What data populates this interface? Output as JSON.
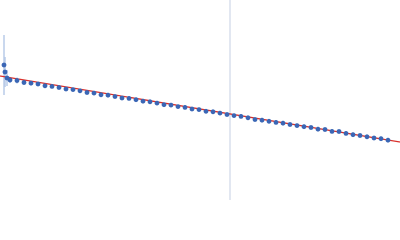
{
  "chart_data": {
    "type": "scatter",
    "xlim": [
      0,
      400
    ],
    "ylim": [
      0,
      200
    ],
    "vline": 230,
    "vline_color": "#c5cfe3",
    "series": [
      {
        "color": "#3a66b5",
        "error_color": "#b9cbe8",
        "x": [
          4,
          5,
          7,
          10,
          17,
          24,
          31,
          38,
          45,
          52,
          59,
          66,
          73,
          80,
          87,
          94,
          101,
          108,
          115,
          122,
          129,
          136,
          143,
          150,
          157,
          164,
          171,
          178,
          185,
          192,
          199,
          206,
          213,
          220,
          227,
          234,
          241,
          248,
          255,
          262,
          269,
          276,
          283,
          290,
          297,
          304,
          311,
          318,
          325,
          332,
          339,
          346,
          353,
          360,
          367,
          374,
          381,
          388
        ],
        "values": [
          135,
          128,
          122,
          120,
          119.5,
          117.5,
          116.8,
          116,
          114.2,
          113.6,
          112.5,
          111,
          110.4,
          109.2,
          107.5,
          106.9,
          105.2,
          104.8,
          103.5,
          102,
          101.6,
          100.3,
          98.8,
          98.2,
          96.9,
          95.3,
          94.9,
          93.4,
          92.6,
          91,
          90.4,
          88.7,
          88.2,
          86.9,
          85.5,
          84.4,
          83.6,
          82.2,
          80.5,
          79.8,
          78.7,
          77.6,
          76.8,
          75.5,
          74.4,
          73.3,
          72.5,
          70.8,
          70.5,
          68.6,
          68.5,
          66.6,
          65.3,
          64.5,
          63.2,
          62,
          61.3,
          59.8
        ],
        "errors": [
          30,
          15,
          8,
          3,
          3,
          2.5,
          2,
          2,
          2,
          2,
          2,
          1.5,
          1.5,
          1.5,
          1.5,
          1.5,
          1.5,
          1.5,
          1.5,
          1.5,
          1.5,
          1.5,
          1.5,
          1.5,
          1.5,
          1.5,
          1.5,
          1.5,
          1.5,
          1.5,
          1.5,
          1.5,
          1.5,
          1.5,
          1.5,
          1.5,
          1.5,
          1.5,
          1.5,
          1.5,
          1.5,
          1.5,
          1.5,
          1.5,
          1.5,
          1.5,
          1.5,
          1.5,
          1.5,
          1.5,
          1.5,
          1.5,
          1.5,
          1.5,
          1.5,
          1.5,
          1.5,
          1.5
        ]
      }
    ],
    "fit": {
      "color": "#d9302b",
      "x": [
        0,
        400
      ],
      "values": [
        124,
        58
      ]
    }
  }
}
